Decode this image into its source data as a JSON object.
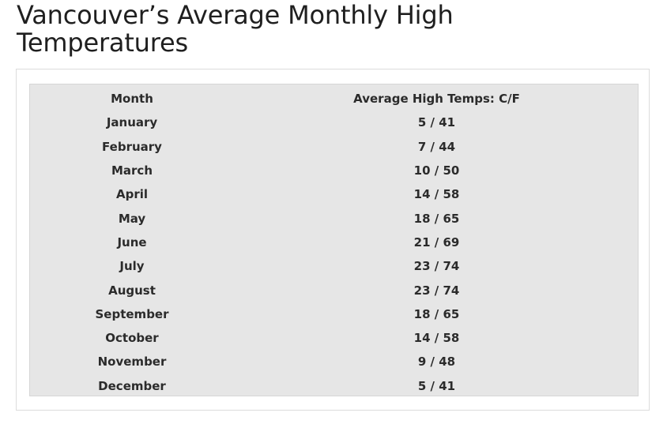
{
  "page": {
    "title": "Vancouver’s Average Monthly High Temperatures"
  },
  "table": {
    "headers": {
      "month": "Month",
      "temps": "Average High Temps: C/F"
    },
    "rows": [
      {
        "month": "January",
        "temps": "5 / 41"
      },
      {
        "month": "February",
        "temps": "7 / 44"
      },
      {
        "month": "March",
        "temps": "10 / 50"
      },
      {
        "month": "April",
        "temps": "14 / 58"
      },
      {
        "month": "May",
        "temps": "18 / 65"
      },
      {
        "month": "June",
        "temps": "21 / 69"
      },
      {
        "month": "July",
        "temps": "23 / 74"
      },
      {
        "month": "August",
        "temps": "23 / 74"
      },
      {
        "month": "September",
        "temps": "18 / 65"
      },
      {
        "month": "October",
        "temps": "14 / 58"
      },
      {
        "month": "November",
        "temps": "9 / 48"
      },
      {
        "month": "December",
        "temps": "5 / 41"
      }
    ]
  },
  "colors": {
    "panel_background": "#e6e6e6",
    "frame_border": "#dcdcdc",
    "text": "#2b2b2b"
  }
}
